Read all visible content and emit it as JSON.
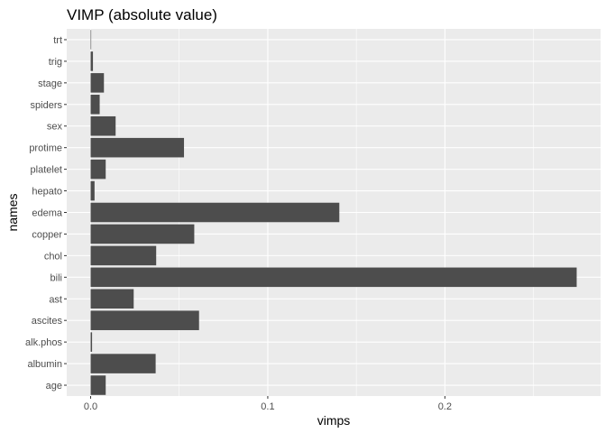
{
  "chart_data": {
    "type": "bar",
    "orientation": "horizontal",
    "title": "VIMP (absolute value)",
    "xlabel": "vimps",
    "ylabel": "names",
    "categories": [
      "age",
      "albumin",
      "alk.phos",
      "ascites",
      "ast",
      "bili",
      "chol",
      "copper",
      "edema",
      "hepato",
      "platelet",
      "protime",
      "sex",
      "spiders",
      "stage",
      "trig",
      "trt"
    ],
    "values": [
      0.0085,
      0.0367,
      0.0008,
      0.0612,
      0.0243,
      0.2744,
      0.037,
      0.0585,
      0.1404,
      0.0022,
      0.0085,
      0.0527,
      0.0141,
      0.0051,
      0.0075,
      0.0013,
      0.0003
    ],
    "xlim": [
      -0.0135,
      0.2879
    ],
    "xticks": [
      0.0,
      0.1,
      0.2
    ],
    "xtick_labels": [
      "0.0",
      "0.1",
      "0.2"
    ],
    "xminor": [
      0.05,
      0.15,
      0.25
    ],
    "grid": true,
    "bar_color": "#4d4d4d",
    "panel_color": "#ebebeb",
    "grid_color": "#ffffff"
  }
}
